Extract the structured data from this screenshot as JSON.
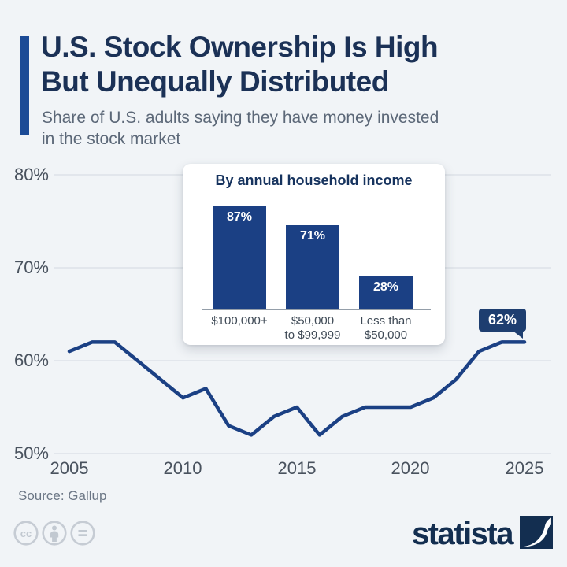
{
  "colors": {
    "background": "#f1f4f7",
    "accent_bar": "#1c4b96",
    "line": "#1b4084",
    "bar": "#1b4084",
    "badge": "#1e3e70",
    "title_text": "#1b3156",
    "subtitle_text": "#5c6878"
  },
  "header": {
    "title_line1": "U.S. Stock Ownership Is High",
    "title_line2": "But Unequally Distributed",
    "subtitle_line1": "Share of U.S. adults saying they have money invested",
    "subtitle_line2": "in the stock market"
  },
  "chart_data": [
    {
      "type": "line",
      "title": "Share of U.S. adults saying they have money invested in the stock market",
      "x": [
        2005,
        2006,
        2007,
        2008,
        2009,
        2010,
        2011,
        2012,
        2013,
        2014,
        2015,
        2016,
        2017,
        2018,
        2019,
        2020,
        2021,
        2022,
        2023,
        2024,
        2025
      ],
      "values": [
        61,
        62,
        62,
        60,
        58,
        56,
        57,
        53,
        52,
        54,
        55,
        52,
        54,
        55,
        55,
        55,
        56,
        58,
        61,
        62,
        62
      ],
      "xlabel": "",
      "ylabel": "",
      "ylim": [
        50,
        80
      ],
      "grid": true,
      "ytick_labels": [
        "80%",
        "70%",
        "60%",
        "50%"
      ],
      "xtick_labels": [
        "2005",
        "2010",
        "2015",
        "2020",
        "2025"
      ],
      "end_label": "62%",
      "line_color": "#1b4084"
    },
    {
      "type": "bar",
      "title": "By annual household income",
      "categories": [
        "$100,000+",
        "$50,000 to $99,999",
        "Less than $50,000"
      ],
      "values": [
        87,
        71,
        28
      ],
      "bar_labels": [
        "87%",
        "71%",
        "28%"
      ],
      "category_lines": [
        {
          "line1": "$100,000+",
          "line2": ""
        },
        {
          "line1": "$50,000",
          "line2": "to $99,999"
        },
        {
          "line1": "Less than",
          "line2": "$50,000"
        }
      ],
      "ylim": [
        0,
        100
      ],
      "bar_color": "#1b4084"
    }
  ],
  "footer": {
    "source": "Source: Gallup",
    "brand_wordmark": "statista",
    "license_icons": [
      "cc-icon",
      "attribution-person-icon",
      "no-derivatives-icon"
    ]
  }
}
